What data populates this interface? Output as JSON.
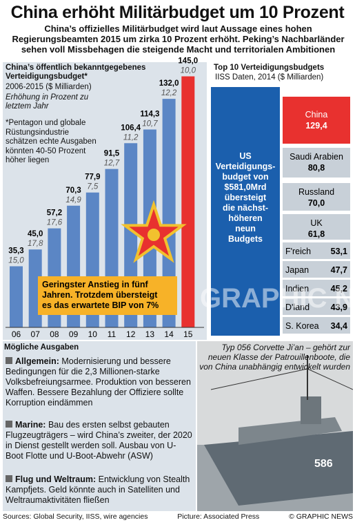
{
  "header": {
    "title": "China erhöht Militärbudget um 10 Prozent",
    "subtitle": "China’s offizielles Militärbudget wird laut Aussage eines hohen Regierungsbeamten 2015 um zirka 10 Prozent erhöht. Peking’s Nachbarländer sehen voll Missbehagen die steigende Macht und territorialen Ambitionen"
  },
  "chart_data": [
    {
      "type": "bar",
      "title": "China’s öffentlich bekanntgegebenes Verteidigungsbudget*",
      "unit": "2006-2015 ($ Milliarden)",
      "secondary_label": "Erhöhung in Prozent zu letztem Jahr",
      "footnote": "*Pentagon und globale Rüstungsindustrie schätzen echte Ausgaben könnten 40-50 Prozent höher liegen",
      "categories": [
        "06",
        "07",
        "08",
        "09",
        "10",
        "11",
        "12",
        "13",
        "14",
        "15"
      ],
      "series": [
        {
          "values": [
            35.3,
            45.0,
            57.2,
            70.3,
            77.9,
            91.5,
            106.4,
            114.3,
            132.0,
            145.0
          ]
        },
        {
          "values": [
            15.0,
            17.8,
            17.6,
            14.9,
            7.5,
            12.7,
            11.2,
            10.7,
            12.2,
            10.0
          ]
        }
      ],
      "value_labels": [
        "35,3",
        "45,0",
        "57,2",
        "70,3",
        "77,9",
        "91,5",
        "106,4",
        "114,3",
        "132,0",
        "145,0"
      ],
      "pct_labels": [
        "15,0",
        "17,8",
        "17,6",
        "14,9",
        "7,5",
        "12,7",
        "11,2",
        "10,7",
        "12,2",
        "10,0"
      ],
      "annotation": "Geringster Anstieg in fünf Jahren. Trotzdem übersteigt es das erwartete BIP von 7%",
      "colors": {
        "bar": "#5b86c5",
        "highlight": "#e8312f",
        "annotation_bg": "#f7b228"
      }
    },
    {
      "type": "bar",
      "title": "Top 10 Verteidigungsbudgets",
      "unit": "IISS Daten, 2014 ($ Milliarden)",
      "categories": [
        "US",
        "China",
        "Saudi Arabien",
        "Russland",
        "UK",
        "F'reich",
        "Japan",
        "Indien",
        "D'land",
        "S. Korea"
      ],
      "values": [
        581.0,
        129.4,
        80.8,
        70.0,
        61.8,
        53.1,
        47.7,
        45.2,
        43.9,
        34.4
      ],
      "value_labels": [
        "",
        "129,4",
        "80,8",
        "70,0",
        "61,8",
        "53,1",
        "47,7",
        "45,2",
        "43,9",
        "34,4"
      ],
      "us_label": "US Verteidigungsbudget von $581,0Mrd übersteigt die nächsthöheren neun Budgets",
      "colors": {
        "us": "#1b5fad",
        "china": "#e8312f",
        "others": "#c8d0d8"
      }
    }
  ],
  "ausgaben": {
    "head": "Mögliche Ausgaben",
    "sections": [
      {
        "label": "Allgemein:",
        "text": "Modernisierung und bessere Bedingungen für die 2,3 Millionen-starke Volksbefreiungsarmee. Produktion von besseren Waffen. Bessere Bezahlung der Offiziere sollte Korruption eindämmen"
      },
      {
        "label": "Marine:",
        "text": "Bau des ersten selbst gebauten Flugzeugträgers – wird China’s zweiter, der 2020 in Dienst gestellt werden soll. Ausbau von U-Boot Flotte und U-Boot-Abwehr (ASW)"
      },
      {
        "label": "Flug und Weltraum:",
        "text": "Entwicklung von Stealth Kampfjets. Geld könnte auch in Satelliten und Weltraumaktivitäten fließen"
      }
    ]
  },
  "ship": {
    "caption": "Typ 056 Corvette Ji’an – gehört zur neuen Klasse der Patrouillenboote, die von China unabhängig entwickelt wurden",
    "hull_number": "586"
  },
  "watermark": "GRAPHIC NEWS",
  "footer": {
    "sources": "Sources: Global Security, IISS, wire agencies",
    "picture": "Picture: Associated Press",
    "copyright": "© GRAPHIC NEWS"
  }
}
